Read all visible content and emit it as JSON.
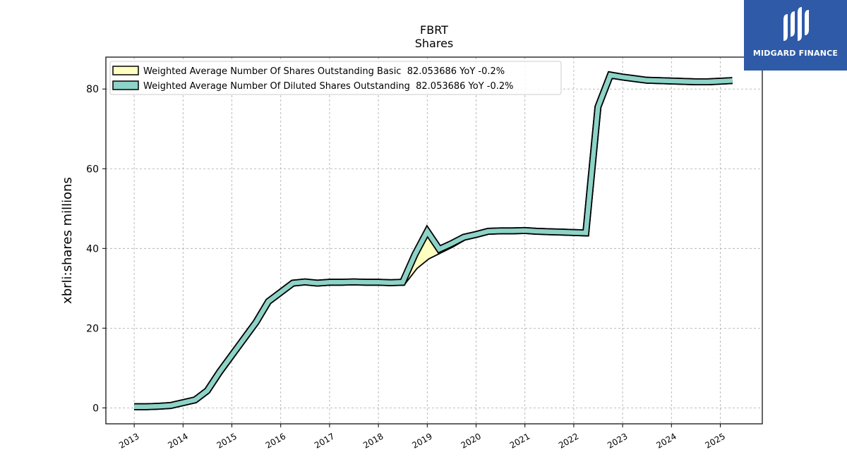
{
  "chart_data": {
    "type": "line",
    "title": "FBRT",
    "subtitle": "Shares",
    "ylabel": "xbrli:shares millions",
    "xlabel": "",
    "ylim": [
      -4,
      88
    ],
    "xlim": [
      2012.42,
      2025.86
    ],
    "yticks": [
      0,
      20,
      40,
      60,
      80
    ],
    "xticks": [
      "2013",
      "2014",
      "2015",
      "2016",
      "2017",
      "2018",
      "2019",
      "2020",
      "2021",
      "2022",
      "2023",
      "2024",
      "2025"
    ],
    "grid": true,
    "legend_position": "top-left",
    "series": [
      {
        "name": "Weighted Average Number Of Shares Outstanding Basic  82.053686 YoY -0.2%",
        "color": "#ffffc0",
        "points": [
          [
            "2013-01-01",
            0.3
          ],
          [
            "2013-04-01",
            0.3
          ],
          [
            "2013-07-01",
            0.4
          ],
          [
            "2013-10-01",
            0.6
          ],
          [
            "2014-04-01",
            2.0
          ],
          [
            "2014-07-01",
            4.3
          ],
          [
            "2014-10-01",
            9.0
          ],
          [
            "2015-07-01",
            21.5
          ],
          [
            "2015-10-01",
            26.7
          ],
          [
            "2016-04-01",
            31.3
          ],
          [
            "2016-07-01",
            31.6
          ],
          [
            "2016-10-01",
            31.3
          ],
          [
            "2017-01-01",
            31.5
          ],
          [
            "2017-04-01",
            31.5
          ],
          [
            "2017-07-01",
            31.6
          ],
          [
            "2017-10-01",
            31.5
          ],
          [
            "2018-01-01",
            31.5
          ],
          [
            "2018-04-01",
            31.4
          ],
          [
            "2018-07-01",
            31.5
          ],
          [
            "2018-10-01",
            35.5
          ],
          [
            "2019-01-01",
            38.0
          ],
          [
            "2019-04-01",
            39.5
          ],
          [
            "2019-07-01",
            41.0
          ],
          [
            "2019-10-01",
            42.8
          ],
          [
            "2020-01-01",
            43.5
          ],
          [
            "2020-04-01",
            44.3
          ],
          [
            "2020-07-01",
            44.4
          ],
          [
            "2020-10-01",
            44.4
          ],
          [
            "2021-01-01",
            44.5
          ],
          [
            "2021-04-01",
            44.3
          ],
          [
            "2021-07-01",
            44.2
          ],
          [
            "2021-10-01",
            44.1
          ],
          [
            "2022-01-01",
            44.0
          ],
          [
            "2022-04-01",
            43.9
          ],
          [
            "2022-07-01",
            75.5
          ],
          [
            "2022-10-01",
            83.5
          ],
          [
            "2023-01-01",
            83.0
          ],
          [
            "2023-07-01",
            82.2
          ],
          [
            "2024-01-01",
            82.0
          ],
          [
            "2024-07-01",
            81.8
          ],
          [
            "2024-10-01",
            81.8
          ],
          [
            "2025-04-01",
            82.1
          ]
        ]
      },
      {
        "name": "Weighted Average Number Of Diluted Shares Outstanding  82.053686 YoY -0.2%",
        "color": "#8dd3c7",
        "points": [
          [
            "2013-01-01",
            0.3
          ],
          [
            "2013-04-01",
            0.3
          ],
          [
            "2013-07-01",
            0.4
          ],
          [
            "2013-10-01",
            0.6
          ],
          [
            "2014-04-01",
            2.0
          ],
          [
            "2014-07-01",
            4.3
          ],
          [
            "2014-10-01",
            9.0
          ],
          [
            "2015-07-01",
            21.5
          ],
          [
            "2015-10-01",
            26.7
          ],
          [
            "2016-04-01",
            31.3
          ],
          [
            "2016-07-01",
            31.6
          ],
          [
            "2016-10-01",
            31.3
          ],
          [
            "2017-01-01",
            31.5
          ],
          [
            "2017-04-01",
            31.5
          ],
          [
            "2017-07-01",
            31.6
          ],
          [
            "2017-10-01",
            31.5
          ],
          [
            "2018-01-01",
            31.5
          ],
          [
            "2018-04-01",
            31.4
          ],
          [
            "2018-07-01",
            31.5
          ],
          [
            "2018-10-01",
            38.5
          ],
          [
            "2019-01-01",
            44.3
          ],
          [
            "2019-04-01",
            39.8
          ],
          [
            "2019-07-01",
            41.2
          ],
          [
            "2019-10-01",
            42.8
          ],
          [
            "2020-01-01",
            43.5
          ],
          [
            "2020-04-01",
            44.3
          ],
          [
            "2020-07-01",
            44.4
          ],
          [
            "2020-10-01",
            44.4
          ],
          [
            "2021-01-01",
            44.5
          ],
          [
            "2021-04-01",
            44.3
          ],
          [
            "2021-07-01",
            44.2
          ],
          [
            "2021-10-01",
            44.1
          ],
          [
            "2022-01-01",
            44.0
          ],
          [
            "2022-04-01",
            43.9
          ],
          [
            "2022-07-01",
            75.5
          ],
          [
            "2022-10-01",
            83.5
          ],
          [
            "2023-01-01",
            83.0
          ],
          [
            "2023-07-01",
            82.2
          ],
          [
            "2024-01-01",
            82.0
          ],
          [
            "2024-07-01",
            81.8
          ],
          [
            "2024-10-01",
            81.8
          ],
          [
            "2025-04-01",
            82.1
          ]
        ]
      }
    ]
  },
  "logo": {
    "text": "MIDGARD FINANCE",
    "background": "#2f5aa8"
  }
}
